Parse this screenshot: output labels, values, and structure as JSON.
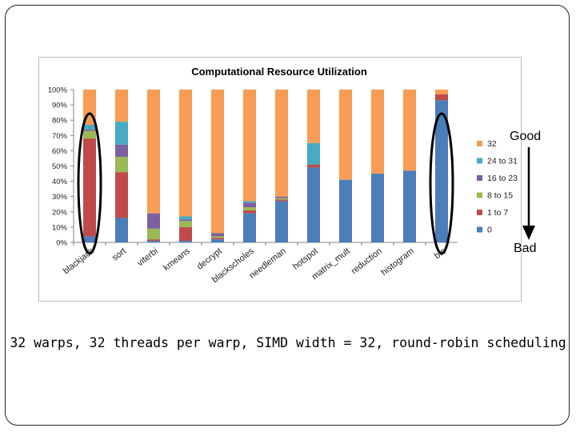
{
  "caption": "32 warps, 32 threads per warp, SIMD width = 32, round-robin scheduling",
  "annotations": {
    "good": "Good",
    "bad": "Bad"
  },
  "chart_data": {
    "type": "bar",
    "stacked": true,
    "title": "Computational Resource Utilization",
    "xlabel": "",
    "ylabel": "",
    "ylim": [
      0,
      100
    ],
    "y_ticks": [
      "0%",
      "10%",
      "20%",
      "30%",
      "40%",
      "50%",
      "60%",
      "70%",
      "80%",
      "90%",
      "100%"
    ],
    "categories": [
      "blackjack",
      "sort",
      "viterbi",
      "kmeans",
      "decrypt",
      "blackscholes",
      "needleman",
      "hotspot",
      "matrix_mult",
      "reduction",
      "histogram",
      "bfs"
    ],
    "series": [
      {
        "name": "0",
        "color": "#4a7ebb",
        "values": [
          4,
          16,
          1,
          1,
          2,
          19,
          27,
          49,
          41,
          45,
          47,
          93
        ]
      },
      {
        "name": "1 to 7",
        "color": "#be4b48",
        "values": [
          64,
          30,
          1,
          9,
          1,
          2,
          1,
          2,
          0,
          0,
          0,
          4
        ]
      },
      {
        "name": "8 to 15",
        "color": "#98b954",
        "values": [
          5,
          10,
          7,
          4,
          1,
          2,
          1,
          0,
          0,
          0,
          0,
          0
        ]
      },
      {
        "name": "16 to 23",
        "color": "#7d60a0",
        "values": [
          1,
          8,
          10,
          1,
          2,
          3,
          1,
          0,
          0,
          0,
          0,
          0
        ]
      },
      {
        "name": "24 to 31",
        "color": "#46aac5",
        "values": [
          3,
          15,
          0,
          2,
          0,
          1,
          0,
          14,
          0,
          0,
          0,
          0
        ]
      },
      {
        "name": "32",
        "color": "#f59d56",
        "values": [
          23,
          21,
          81,
          83,
          94,
          73,
          70,
          35,
          59,
          55,
          53,
          3
        ]
      }
    ],
    "legend_position": "right",
    "grid": false,
    "highlighted_categories": [
      "blackjack",
      "bfs"
    ]
  }
}
